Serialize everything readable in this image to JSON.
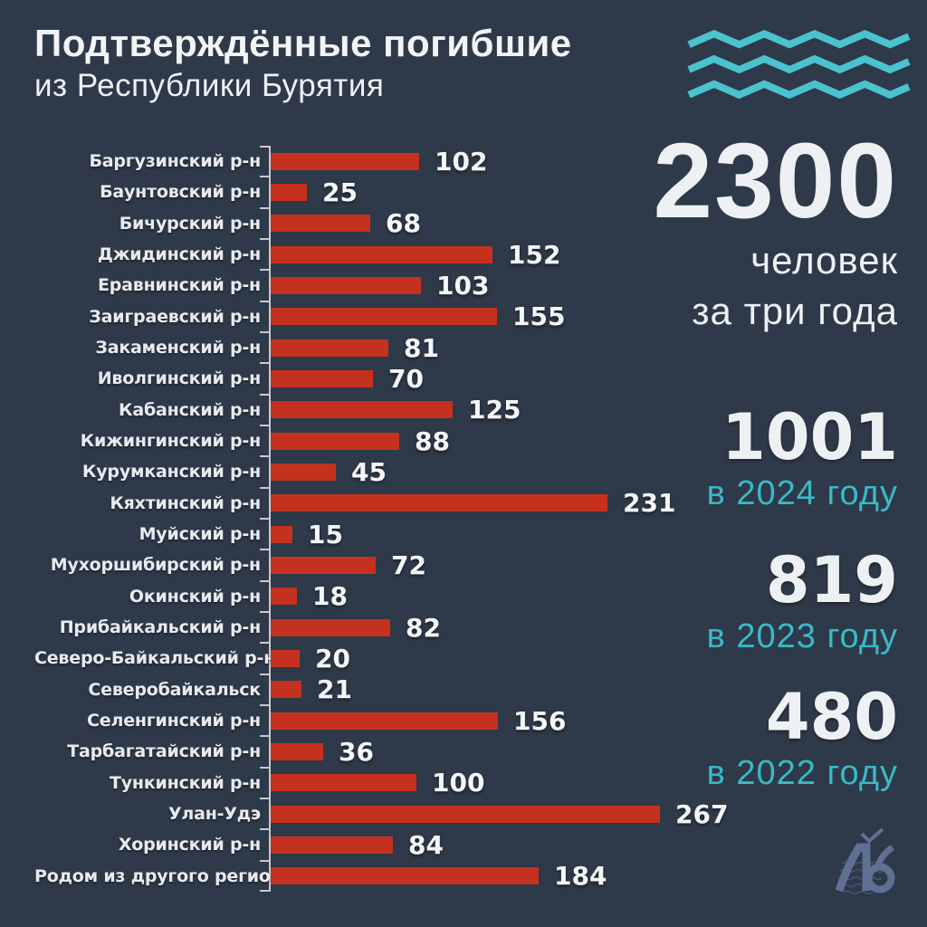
{
  "title": {
    "line1": "Подтверждённые погибшие",
    "line2": "из Республики Бурятия"
  },
  "chart_data": {
    "type": "bar",
    "orientation": "horizontal",
    "categories": [
      "Баргузинский р-н",
      "Баунтовский р-н",
      "Бичурский р-н",
      "Джидинский р-н",
      "Еравнинский р-н",
      "Заиграевский р-н",
      "Закаменский р-н",
      "Иволгинский р-н",
      "Кабанский р-н",
      "Кижингинский р-н",
      "Курумканский р-н",
      "Кяхтинский р-н",
      "Муйский р-н",
      "Мухоршибирский р-н",
      "Окинский р-н",
      "Прибайкальский р-н",
      "Северо-Байкальский р-н",
      "Северобайкальск",
      "Селенгинский р-н",
      "Тарбагатайский р-н",
      "Тункинский р-н",
      "Улан-Удэ",
      "Хоринский р-н",
      "Родом из другого региона"
    ],
    "values": [
      102,
      25,
      68,
      152,
      103,
      155,
      81,
      70,
      125,
      88,
      45,
      231,
      15,
      72,
      18,
      82,
      20,
      21,
      156,
      36,
      100,
      267,
      84,
      184
    ],
    "value_labels_shown": true,
    "xlim": [
      0,
      267
    ],
    "grid": false,
    "bar_color": "#c5311f",
    "axis_color": "#c4cad2",
    "label_color": "#e8ebee",
    "value_color": "#f4f6f8"
  },
  "summary": {
    "total": {
      "value": "2300",
      "sub_line1": "человек",
      "sub_line2": "за три года"
    },
    "years": [
      {
        "value": "1001",
        "label": "в 2024 году"
      },
      {
        "value": "819",
        "label": "в 2023 году"
      },
      {
        "value": "480",
        "label": "в 2022 году"
      }
    ]
  },
  "icons": {
    "waves": "waves-icon",
    "logo": "lyudi-baikala-logo-icon"
  },
  "colors": {
    "background": "#2e3949",
    "bar_red": "#c5311f",
    "accent_teal": "#3ab9c6",
    "wave_teal": "#4ac3ce",
    "text_white": "#eef1f3",
    "logo_slate": "#6d7ea6"
  }
}
